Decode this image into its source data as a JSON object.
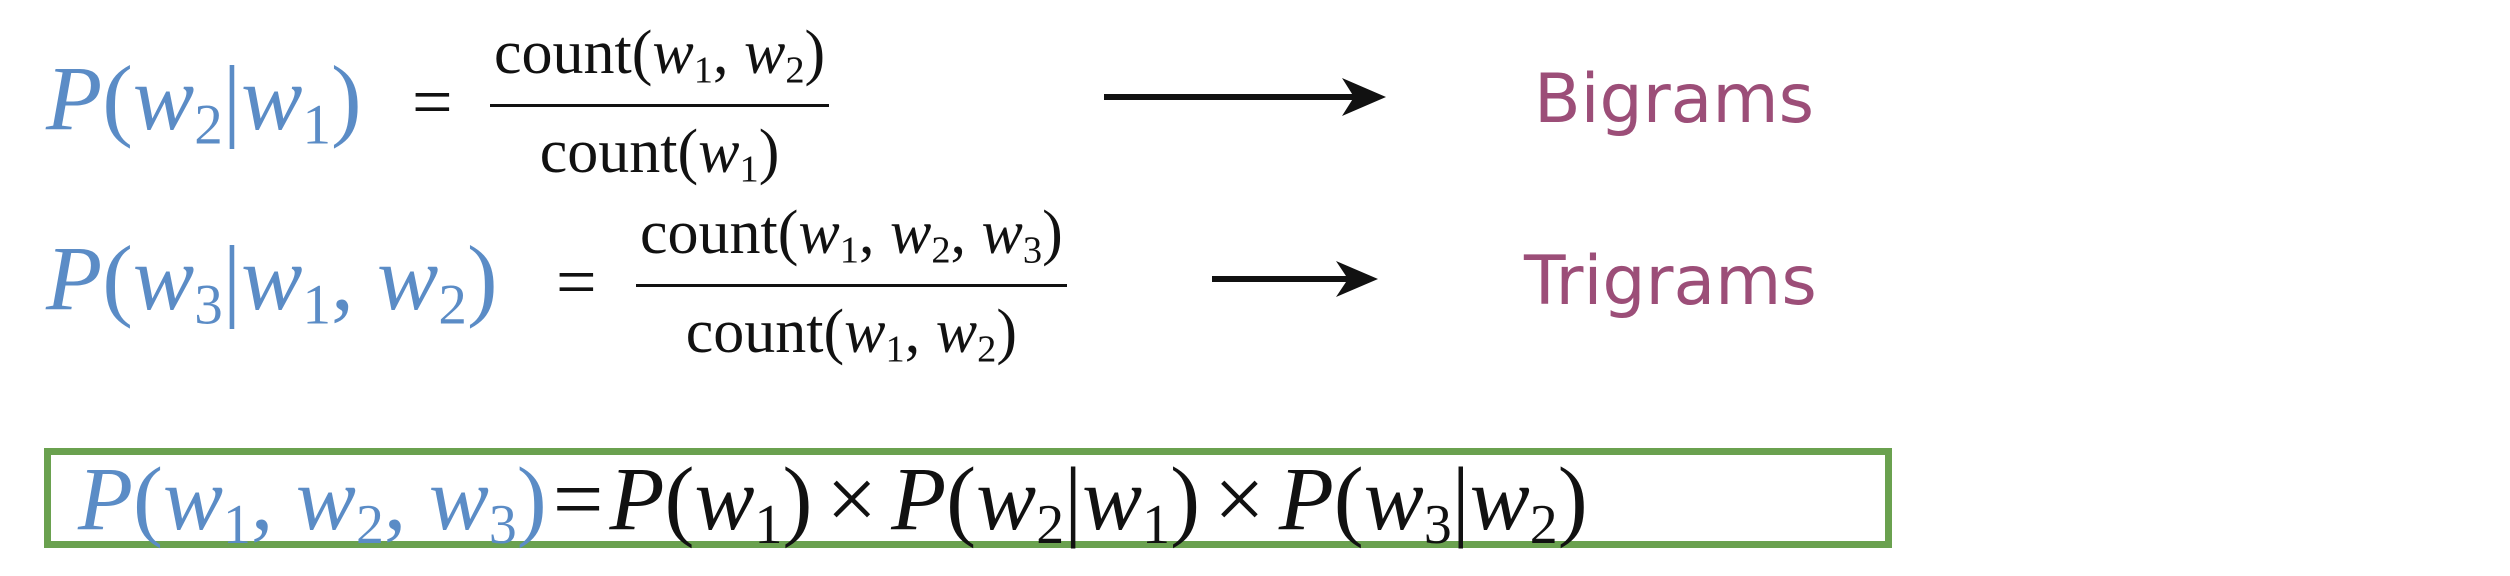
{
  "equations": {
    "bigram": {
      "lhs": {
        "p": "P",
        "open": "(",
        "w_a": "w",
        "w_a_sub": "2",
        "given": "|",
        "w_b": "w",
        "w_b_sub": "1",
        "close": ")"
      },
      "equals": "=",
      "numerator": {
        "fn": "count(",
        "w1": "w",
        "w1_sub": "1",
        "comma1": ", ",
        "w2": "w",
        "w2_sub": "2",
        "close": ")"
      },
      "denominator": {
        "fn": "count(",
        "w1": "w",
        "w1_sub": "1",
        "close": ")"
      },
      "label": "Bigrams"
    },
    "trigram": {
      "lhs": {
        "p": "P",
        "open": "(",
        "w_a": "w",
        "w_a_sub": "3",
        "given": "|",
        "w_b": "w",
        "w_b_sub": "1",
        "comma": ", ",
        "w_c": "w",
        "w_c_sub": "2",
        "close": ")"
      },
      "equals": "=",
      "numerator": {
        "fn": "count(",
        "w1": "w",
        "w1_sub": "1",
        "comma1": ", ",
        "w2": "w",
        "w2_sub": "2",
        "comma2": ", ",
        "w3": "w",
        "w3_sub": "3",
        "close": ")"
      },
      "denominator": {
        "fn": "count(",
        "w1": "w",
        "w1_sub": "1",
        "comma1": ", ",
        "w2": "w",
        "w2_sub": "2",
        "close": ")"
      },
      "label": "Trigrams"
    },
    "chain_rule": {
      "lhs_p": "P",
      "lhs_open": "(",
      "lhs_w1": "w",
      "lhs_w1_sub": "1",
      "lhs_c1": ", ",
      "lhs_w2": "w",
      "lhs_w2_sub": "2",
      "lhs_c2": ", ",
      "lhs_w3": "w",
      "lhs_w3_sub": "3",
      "lhs_close": ")",
      "equals": "=",
      "t1_p": "P",
      "t1_open": "(",
      "t1_w": "w",
      "t1_w_sub": "1",
      "t1_close": ")",
      "times1": "×",
      "t2_p": "P",
      "t2_open": "(",
      "t2_w": "w",
      "t2_w_sub": "2",
      "t2_given": "|",
      "t2_v": "w",
      "t2_v_sub": "1",
      "t2_close": ")",
      "times2": "×",
      "t3_p": "P",
      "t3_open": "(",
      "t3_w": "w",
      "t3_w_sub": "3",
      "t3_given": "|",
      "t3_v": "w",
      "t3_v_sub": "2",
      "t3_close": ")"
    }
  },
  "colors": {
    "lhs_blue": "#5b8cc6",
    "label_purple": "#9c4e78",
    "box_green": "#6aa14f",
    "ink": "#111111"
  },
  "icons": {
    "arrow": "right-arrow-icon"
  }
}
